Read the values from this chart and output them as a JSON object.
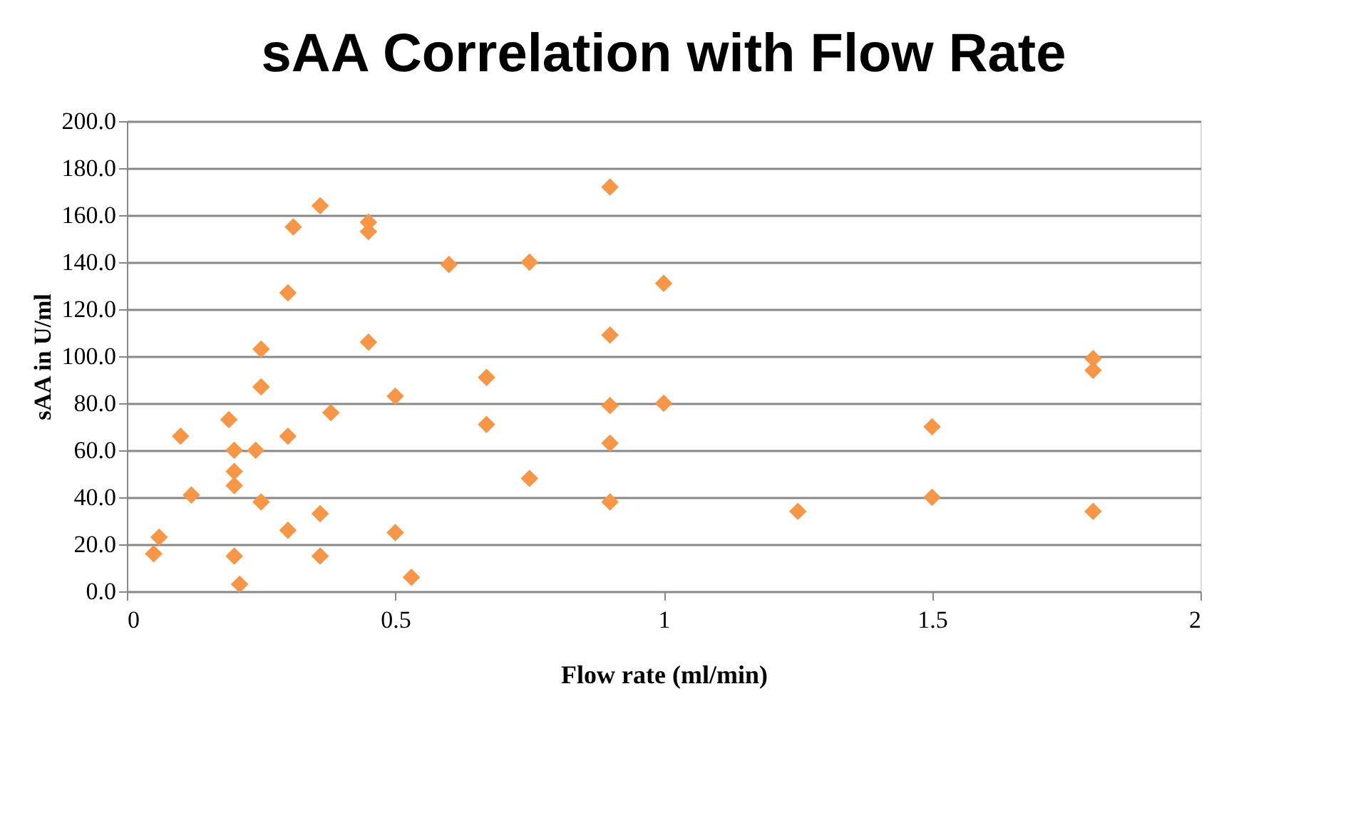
{
  "chart_data": {
    "type": "scatter",
    "title": "sAA Correlation with Flow Rate",
    "xlabel": "Flow rate (ml/min)",
    "ylabel": "sAA in U/ml",
    "x": [
      0.05,
      0.06,
      0.1,
      0.12,
      0.19,
      0.2,
      0.2,
      0.2,
      0.2,
      0.21,
      0.24,
      0.25,
      0.25,
      0.25,
      0.3,
      0.3,
      0.3,
      0.31,
      0.36,
      0.36,
      0.36,
      0.38,
      0.45,
      0.45,
      0.45,
      0.5,
      0.5,
      0.53,
      0.6,
      0.67,
      0.67,
      0.75,
      0.75,
      0.9,
      0.9,
      0.9,
      0.9,
      0.9,
      1.0,
      1.0,
      1.25,
      1.5,
      1.5,
      1.8,
      1.8,
      1.8
    ],
    "series": [
      {
        "color": "#f79646",
        "values": [
          16,
          23,
          66,
          41,
          73,
          60,
          51,
          45,
          15,
          3,
          60,
          87,
          103,
          38,
          127,
          66,
          26,
          155,
          164,
          33,
          15,
          76,
          157,
          153,
          106,
          83,
          25,
          6,
          139,
          91,
          71,
          140,
          48,
          172,
          109,
          79,
          63,
          38,
          131,
          80,
          34,
          70,
          40,
          99,
          94,
          34
        ]
      }
    ],
    "xlim": [
      0,
      2
    ],
    "xticks": [
      0,
      0.5,
      1,
      1.5,
      2
    ],
    "ylim": [
      0,
      200
    ],
    "yticks": [
      {
        "value": 0,
        "label": "0.0"
      },
      {
        "value": 20,
        "label": "20.0"
      },
      {
        "value": 40,
        "label": "40.0"
      },
      {
        "value": 60,
        "label": "60.0"
      },
      {
        "value": 80,
        "label": "80.0"
      },
      {
        "value": 100,
        "label": "100.0"
      },
      {
        "value": 120,
        "label": "120.0"
      },
      {
        "value": 140,
        "label": "140.0"
      },
      {
        "value": 160,
        "label": "160.0"
      },
      {
        "value": 180,
        "label": "180.0"
      },
      {
        "value": 200,
        "label": "200.0"
      }
    ],
    "grid": "y",
    "marker": "diamond",
    "legend": false
  }
}
